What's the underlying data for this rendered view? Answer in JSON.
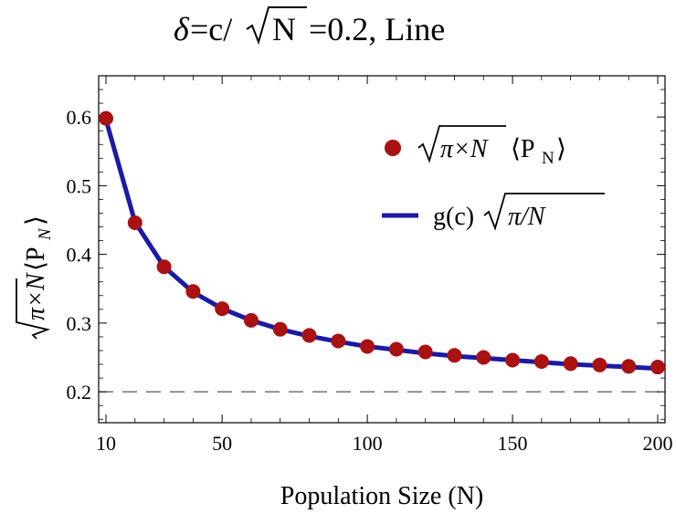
{
  "chart_data": {
    "type": "scatter",
    "title": {
      "lhs": "δ",
      "mid": "=c/",
      "radicand": "N",
      "rhs": "=0.2, Line"
    },
    "xlabel": "Population Size (N)",
    "ylabel": {
      "radicand": "π×N",
      "bracket": "⟨P",
      "sub": "N",
      "close": "⟩"
    },
    "xlim": [
      10,
      200
    ],
    "ylim": [
      0.155,
      0.66
    ],
    "x_ticks": [
      10,
      50,
      100,
      150,
      200
    ],
    "y_ticks": [
      0.2,
      0.3,
      0.4,
      0.5,
      0.6
    ],
    "reference_line": {
      "y": 0.2,
      "style": "dashed",
      "color": "#555555"
    },
    "legend_position": "top-right",
    "series": [
      {
        "name": "√(π×N) ⟨P_N⟩",
        "kind": "points",
        "color": "#aa1111",
        "legend": {
          "radicand": "π×N",
          "bracket": "⟨P",
          "sub": "N",
          "close": "⟩"
        },
        "x": [
          10,
          20,
          30,
          40,
          50,
          60,
          70,
          80,
          90,
          100,
          110,
          120,
          130,
          140,
          150,
          160,
          170,
          180,
          190,
          200
        ],
        "y": [
          0.598,
          0.446,
          0.382,
          0.346,
          0.321,
          0.304,
          0.291,
          0.282,
          0.274,
          0.266,
          0.262,
          0.258,
          0.253,
          0.25,
          0.246,
          0.244,
          0.241,
          0.239,
          0.237,
          0.236
        ]
      },
      {
        "name": "g(c)√(π/N)",
        "kind": "line",
        "color": "#1a1aa6",
        "legend": {
          "prefix": "g(c)",
          "radicand": "π/N"
        },
        "x": [
          10,
          20,
          30,
          40,
          50,
          60,
          70,
          80,
          90,
          100,
          110,
          120,
          130,
          140,
          150,
          160,
          170,
          180,
          190,
          200
        ],
        "y": [
          0.596,
          0.447,
          0.382,
          0.345,
          0.321,
          0.304,
          0.291,
          0.281,
          0.273,
          0.266,
          0.261,
          0.256,
          0.252,
          0.249,
          0.246,
          0.243,
          0.24,
          0.238,
          0.236,
          0.234
        ]
      }
    ]
  }
}
